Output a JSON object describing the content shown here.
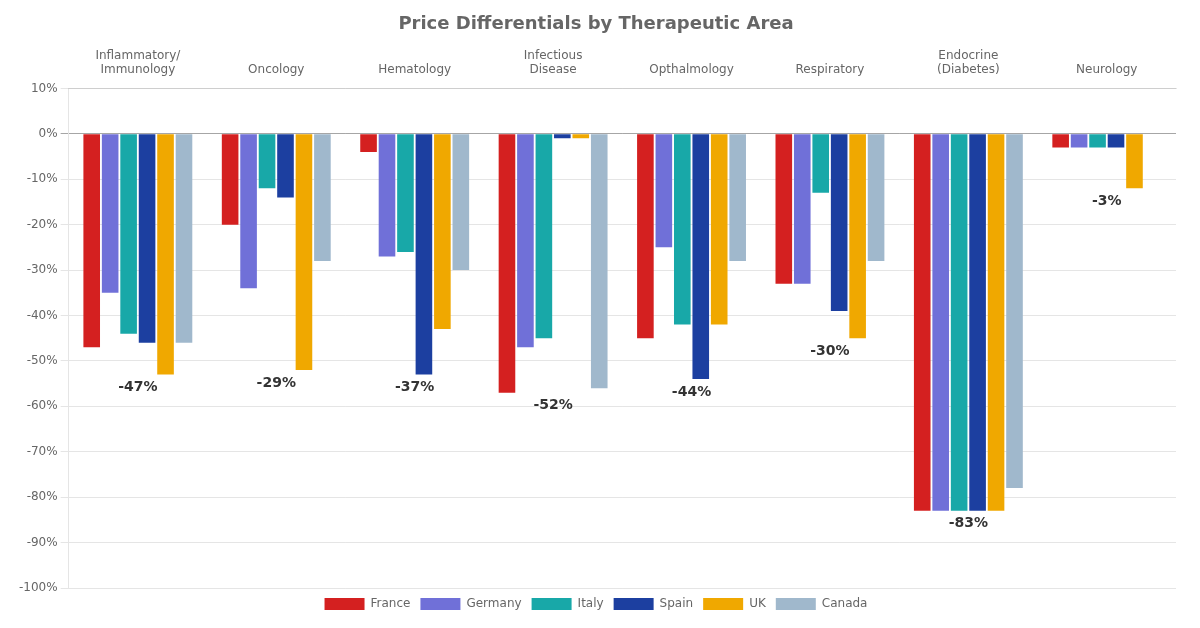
{
  "chart_data": {
    "type": "bar",
    "title": "Price Differentials by Therapeutic Area",
    "categories": [
      "Inflammatory/\nImmunology",
      "Oncology",
      "Hematology",
      "Infectious\nDisease",
      "Opthalmology",
      "Respiratory",
      "Endocrine\n(Diabetes)",
      "Neurology"
    ],
    "series": [
      {
        "name": "France",
        "color": "#d42020",
        "values": [
          -47,
          -20,
          -4,
          -57,
          -45,
          -33,
          -83,
          -3
        ]
      },
      {
        "name": "Germany",
        "color": "#7070d8",
        "values": [
          -35,
          -34,
          -27,
          -47,
          -25,
          -33,
          -83,
          -3
        ]
      },
      {
        "name": "Italy",
        "color": "#18a8a8",
        "values": [
          -44,
          -12,
          -26,
          -45,
          -42,
          -13,
          -83,
          -3
        ]
      },
      {
        "name": "Spain",
        "color": "#1c3fa0",
        "values": [
          -46,
          -14,
          -53,
          -1,
          -54,
          -39,
          -83,
          -3
        ]
      },
      {
        "name": "UK",
        "color": "#f0a800",
        "values": [
          -53,
          -52,
          -43,
          -1,
          -42,
          -45,
          -83,
          -12
        ]
      },
      {
        "name": "Canada",
        "color": "#a0b8cc",
        "values": [
          -46,
          -28,
          -30,
          -56,
          -28,
          -28,
          -78,
          0
        ]
      }
    ],
    "ylim": [
      -100,
      10
    ],
    "yticks": [
      {
        "value": 10,
        "label": "10%"
      },
      {
        "value": 0,
        "label": "0%"
      },
      {
        "value": -10,
        "label": "-10%"
      },
      {
        "value": -20,
        "label": "-20%"
      },
      {
        "value": -30,
        "label": "-30%"
      },
      {
        "value": -40,
        "label": "-40%"
      },
      {
        "value": -50,
        "label": "-50%"
      },
      {
        "value": -60,
        "label": "-60%"
      },
      {
        "value": -70,
        "label": "-70%"
      },
      {
        "value": -80,
        "label": "-80%"
      },
      {
        "value": -90,
        "label": "-90%"
      },
      {
        "value": -100,
        "label": "-100%"
      }
    ],
    "grid": true,
    "legend": "bottom",
    "annotations": [
      {
        "text": "-47%",
        "category": "Inflammatory/\nImmunology"
      },
      {
        "text": "-29%",
        "category": "Oncology"
      },
      {
        "text": "-37%",
        "category": "Hematology"
      },
      {
        "text": "-52%",
        "category": "Infectious\nDisease"
      },
      {
        "text": "-44%",
        "category": "Opthalmology"
      },
      {
        "text": "-30%",
        "category": "Respiratory"
      },
      {
        "text": "-83%",
        "category": "Endocrine\n(Diabetes)"
      },
      {
        "text": "-3%",
        "category": "Neurology"
      }
    ]
  }
}
